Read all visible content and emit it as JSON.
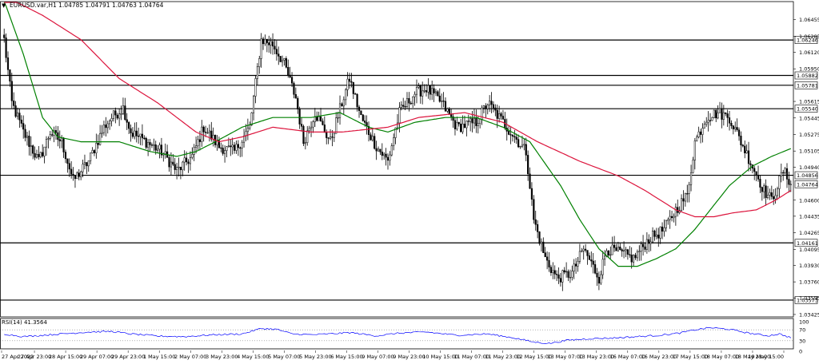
{
  "header": {
    "menu_arrow": "▼",
    "symbol_info": "EURUSD.var,H1  1.04785 1.04791 1.04763 1.04764"
  },
  "colors": {
    "background": "#ffffff",
    "candle": "#000000",
    "ma_fast": "#008000",
    "ma_slow": "#dc143c",
    "level_line": "#000000",
    "rsi_line": "#0000ff",
    "grid_dots": "#808080"
  },
  "chart_data": [
    {
      "type": "candlestick",
      "panel": "price",
      "symbol": "EURUSD.var",
      "timeframe": "H1",
      "ylim": [
        1.034,
        1.066
      ],
      "y_ticks": [
        "1.06455",
        "1.06285",
        "1.06120",
        "1.05950",
        "1.05615",
        "1.05445",
        "1.05275",
        "1.05105",
        "1.04940",
        "1.04600",
        "1.04435",
        "1.04265",
        "1.04095",
        "1.03930",
        "1.03760",
        "1.03595",
        "1.03425"
      ],
      "horizontal_levels": [
        {
          "value": 1.06246,
          "label": "1.06246"
        },
        {
          "value": 1.05882,
          "label": "1.05882"
        },
        {
          "value": 1.05781,
          "label": "1.05781"
        },
        {
          "value": 1.0554,
          "label": "1.05540"
        },
        {
          "value": 1.04856,
          "label": "1.04856"
        },
        {
          "value": 1.04161,
          "label": "1.04161"
        },
        {
          "value": 1.03573,
          "label": "1.03573"
        }
      ],
      "current_price": {
        "value": 1.04764,
        "label": "1.04764"
      },
      "x_labels": [
        "27 Apr 2022",
        "27 Apr 23:00",
        "28 Apr 15:00",
        "29 Apr 07:00",
        "29 Apr 23:00",
        "1 May 15:00",
        "2 May 07:00",
        "3 May 23:00",
        "4 May 15:00",
        "5 May 07:00",
        "5 May 23:00",
        "6 May 15:00",
        "9 May 07:00",
        "9 May 23:00",
        "10 May 15:00",
        "11 May 07:00",
        "11 May 23:00",
        "12 May 15:00",
        "13 May 07:00",
        "13 May 23:00",
        "16 May 07:00",
        "16 May 23:00",
        "17 May 15:00",
        "18 May 07:00",
        "18 May 23:00",
        "19 May 15:00"
      ],
      "close_anchors": [
        [
          0,
          1.0625
        ],
        [
          4,
          1.056
        ],
        [
          10,
          1.053
        ],
        [
          18,
          1.05
        ],
        [
          24,
          1.053
        ],
        [
          30,
          1.052
        ],
        [
          36,
          1.048
        ],
        [
          44,
          1.05
        ],
        [
          52,
          1.0535
        ],
        [
          56,
          1.0545
        ],
        [
          62,
          1.0555
        ],
        [
          66,
          1.053
        ],
        [
          74,
          1.052
        ],
        [
          82,
          1.051
        ],
        [
          90,
          1.049
        ],
        [
          98,
          1.0505
        ],
        [
          104,
          1.0535
        ],
        [
          112,
          1.0515
        ],
        [
          120,
          1.051
        ],
        [
          128,
          1.0535
        ],
        [
          134,
          1.0625
        ],
        [
          140,
          1.062
        ],
        [
          146,
          1.06
        ],
        [
          152,
          1.0565
        ],
        [
          156,
          1.052
        ],
        [
          162,
          1.055
        ],
        [
          170,
          1.052
        ],
        [
          176,
          1.056
        ],
        [
          180,
          1.0585
        ],
        [
          186,
          1.0545
        ],
        [
          194,
          1.0515
        ],
        [
          200,
          1.05
        ],
        [
          206,
          1.055
        ],
        [
          214,
          1.057
        ],
        [
          220,
          1.0575
        ],
        [
          228,
          1.056
        ],
        [
          236,
          1.0535
        ],
        [
          246,
          1.054
        ],
        [
          252,
          1.056
        ],
        [
          258,
          1.0545
        ],
        [
          266,
          1.0525
        ],
        [
          272,
          1.051
        ],
        [
          276,
          1.044
        ],
        [
          282,
          1.04
        ],
        [
          288,
          1.038
        ],
        [
          296,
          1.0385
        ],
        [
          302,
          1.041
        ],
        [
          306,
          1.0395
        ],
        [
          310,
          1.038
        ],
        [
          314,
          1.041
        ],
        [
          322,
          1.0405
        ],
        [
          328,
          1.04
        ],
        [
          336,
          1.042
        ],
        [
          344,
          1.043
        ],
        [
          350,
          1.045
        ],
        [
          356,
          1.0465
        ],
        [
          360,
          1.052
        ],
        [
          366,
          1.0545
        ],
        [
          372,
          1.055
        ],
        [
          378,
          1.0545
        ],
        [
          384,
          1.052
        ],
        [
          390,
          1.0495
        ],
        [
          396,
          1.047
        ],
        [
          400,
          1.046
        ],
        [
          406,
          1.049
        ],
        [
          410,
          1.0478
        ]
      ],
      "fast_ma_anchors": [
        [
          0,
          1.0665
        ],
        [
          10,
          1.061
        ],
        [
          20,
          1.0545
        ],
        [
          28,
          1.0525
        ],
        [
          40,
          1.052
        ],
        [
          60,
          1.052
        ],
        [
          76,
          1.051
        ],
        [
          90,
          1.0505
        ],
        [
          100,
          1.051
        ],
        [
          110,
          1.052
        ],
        [
          124,
          1.0535
        ],
        [
          140,
          1.0545
        ],
        [
          160,
          1.0545
        ],
        [
          175,
          1.055
        ],
        [
          190,
          1.0535
        ],
        [
          200,
          1.053
        ],
        [
          214,
          1.054
        ],
        [
          230,
          1.0545
        ],
        [
          246,
          1.0545
        ],
        [
          260,
          1.0535
        ],
        [
          274,
          1.052
        ],
        [
          290,
          1.0475
        ],
        [
          300,
          1.044
        ],
        [
          310,
          1.041
        ],
        [
          320,
          1.0392
        ],
        [
          330,
          1.0392
        ],
        [
          340,
          1.04
        ],
        [
          350,
          1.041
        ],
        [
          360,
          1.043
        ],
        [
          368,
          1.045
        ],
        [
          378,
          1.0475
        ],
        [
          390,
          1.0495
        ],
        [
          400,
          1.0505
        ],
        [
          410,
          1.0513
        ]
      ],
      "slow_ma_anchors": [
        [
          0,
          1.067
        ],
        [
          20,
          1.065
        ],
        [
          40,
          1.0625
        ],
        [
          60,
          1.0585
        ],
        [
          80,
          1.056
        ],
        [
          100,
          1.053
        ],
        [
          112,
          1.052
        ],
        [
          124,
          1.0525
        ],
        [
          140,
          1.0535
        ],
        [
          160,
          1.053
        ],
        [
          176,
          1.053
        ],
        [
          200,
          1.0535
        ],
        [
          216,
          1.0545
        ],
        [
          240,
          1.055
        ],
        [
          260,
          1.054
        ],
        [
          278,
          1.052
        ],
        [
          300,
          1.05
        ],
        [
          320,
          1.0485
        ],
        [
          334,
          1.047
        ],
        [
          350,
          1.045
        ],
        [
          360,
          1.0443
        ],
        [
          370,
          1.0443
        ],
        [
          380,
          1.0447
        ],
        [
          392,
          1.045
        ],
        [
          402,
          1.046
        ],
        [
          410,
          1.047
        ]
      ],
      "n_candles": 411
    },
    {
      "type": "line",
      "panel": "indicator",
      "indicator_label": "RSI(14) 41.3564",
      "ylim": [
        0,
        100
      ],
      "y_ticks": [
        "100",
        "70",
        "30",
        "0"
      ],
      "levels": [
        70,
        30
      ],
      "rsi_anchors": [
        [
          0,
          55
        ],
        [
          10,
          45
        ],
        [
          20,
          50
        ],
        [
          30,
          55
        ],
        [
          44,
          62
        ],
        [
          56,
          64
        ],
        [
          66,
          55
        ],
        [
          80,
          47
        ],
        [
          94,
          45
        ],
        [
          110,
          52
        ],
        [
          124,
          55
        ],
        [
          134,
          75
        ],
        [
          142,
          72
        ],
        [
          150,
          55
        ],
        [
          160,
          52
        ],
        [
          170,
          55
        ],
        [
          180,
          60
        ],
        [
          194,
          48
        ],
        [
          206,
          58
        ],
        [
          220,
          62
        ],
        [
          236,
          50
        ],
        [
          252,
          55
        ],
        [
          266,
          40
        ],
        [
          276,
          25
        ],
        [
          284,
          20
        ],
        [
          294,
          32
        ],
        [
          306,
          38
        ],
        [
          318,
          40
        ],
        [
          330,
          45
        ],
        [
          342,
          50
        ],
        [
          352,
          58
        ],
        [
          360,
          70
        ],
        [
          368,
          78
        ],
        [
          378,
          72
        ],
        [
          388,
          58
        ],
        [
          398,
          48
        ],
        [
          404,
          55
        ],
        [
          410,
          41
        ]
      ]
    }
  ]
}
